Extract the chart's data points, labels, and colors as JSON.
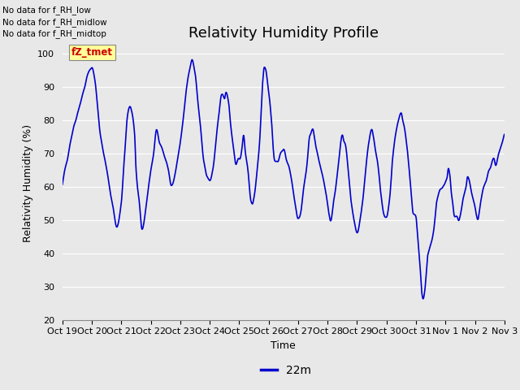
{
  "title": "Relativity Humidity Profile",
  "xlabel": "Time",
  "ylabel": "Relativity Humidity (%)",
  "ylim": [
    20,
    102
  ],
  "yticks": [
    20,
    30,
    40,
    50,
    60,
    70,
    80,
    90,
    100
  ],
  "line_color": "#0000CC",
  "line_width": 1.2,
  "background_color": "#E8E8E8",
  "legend_label": "22m",
  "legend_color": "#0000CC",
  "annotations_upper_left": [
    "No data for f_RH_low",
    "No data for f_RH_midlow",
    "No data for f_RH_midtop"
  ],
  "annotation_box_text": "fZ_tmet",
  "annotation_box_color": "#CC0000",
  "annotation_box_bg": "#FFFF99",
  "xtick_labels": [
    "Oct 19",
    "Oct 20",
    "Oct 21",
    "Oct 22",
    "Oct 23",
    "Oct 24",
    "Oct 25",
    "Oct 26",
    "Oct 27",
    "Oct 28",
    "Oct 29",
    "Oct 30",
    "Oct 31",
    "Nov 1",
    "Nov 2",
    "Nov 3"
  ],
  "title_fontsize": 13,
  "tick_fontsize": 8,
  "label_fontsize": 9,
  "legend_fontsize": 10
}
